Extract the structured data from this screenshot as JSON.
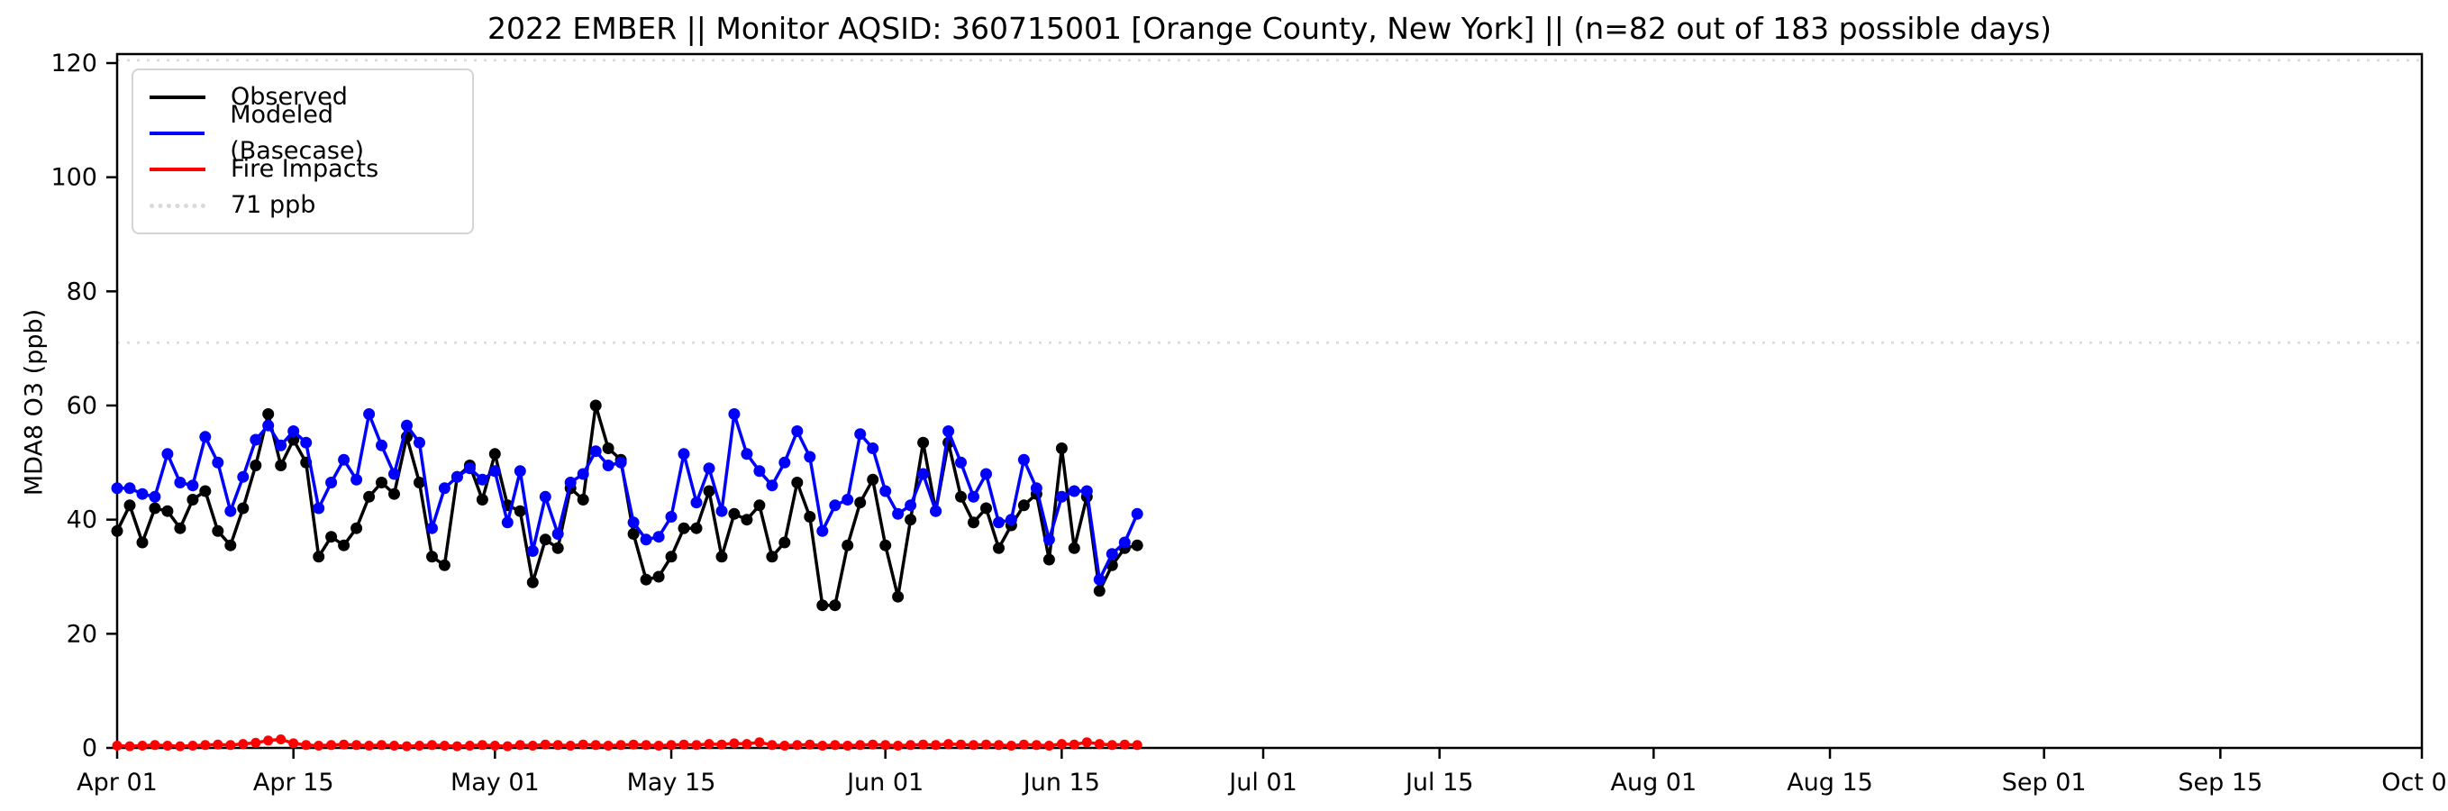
{
  "header": {
    "title": "2022 EMBER || Monitor AQSID: 360715001 [Orange County, New York] || (n=82 out of 183 possible days)"
  },
  "axes": {
    "y_label": "MDA8 O3 (ppb)",
    "y_ticks": [
      0,
      20,
      40,
      60,
      80,
      100,
      120
    ],
    "x_ticks": [
      {
        "label": "Apr 01",
        "day": 0
      },
      {
        "label": "Apr 15",
        "day": 14
      },
      {
        "label": "May 01",
        "day": 30
      },
      {
        "label": "May 15",
        "day": 44
      },
      {
        "label": "Jun 01",
        "day": 61
      },
      {
        "label": "Jun 15",
        "day": 75
      },
      {
        "label": "Jul 01",
        "day": 91
      },
      {
        "label": "Jul 15",
        "day": 105
      },
      {
        "label": "Aug 01",
        "day": 122
      },
      {
        "label": "Aug 15",
        "day": 136
      },
      {
        "label": "Sep 01",
        "day": 153
      },
      {
        "label": "Sep 15",
        "day": 167
      },
      {
        "label": "Oct 01",
        "day": 183
      }
    ],
    "x_total_days": 183
  },
  "legend": {
    "items": [
      {
        "label": "Observed",
        "color": "#000000",
        "style": "solid"
      },
      {
        "label": "Modeled (Basecase)",
        "color": "#0000ff",
        "style": "solid"
      },
      {
        "label": "Fire Impacts",
        "color": "#ff0000",
        "style": "solid"
      },
      {
        "label": "71 ppb",
        "color": "#d9d9d9",
        "style": "dotted"
      }
    ]
  },
  "chart_data": {
    "type": "line",
    "title": "2022 EMBER || Monitor AQSID: 360715001 [Orange County, New York] || (n=82 out of 183 possible days)",
    "xlabel": "",
    "ylabel": "MDA8 O3 (ppb)",
    "ylim": [
      0,
      120
    ],
    "x_axis_span": [
      "Apr 01",
      "Oct 01"
    ],
    "grid": false,
    "legend_position": "upper left",
    "x_dates": [
      "Apr 01",
      "Apr 02",
      "Apr 03",
      "Apr 04",
      "Apr 05",
      "Apr 06",
      "Apr 07",
      "Apr 08",
      "Apr 09",
      "Apr 10",
      "Apr 11",
      "Apr 12",
      "Apr 13",
      "Apr 14",
      "Apr 15",
      "Apr 16",
      "Apr 17",
      "Apr 18",
      "Apr 19",
      "Apr 20",
      "Apr 21",
      "Apr 22",
      "Apr 23",
      "Apr 24",
      "Apr 25",
      "Apr 26",
      "Apr 27",
      "Apr 28",
      "Apr 29",
      "Apr 30",
      "May 01",
      "May 02",
      "May 03",
      "May 04",
      "May 05",
      "May 06",
      "May 07",
      "May 08",
      "May 09",
      "May 10",
      "May 11",
      "May 12",
      "May 13",
      "May 14",
      "May 15",
      "May 16",
      "May 17",
      "May 18",
      "May 19",
      "May 20",
      "May 21",
      "May 22",
      "May 23",
      "May 24",
      "May 25",
      "May 26",
      "May 27",
      "May 28",
      "May 29",
      "May 30",
      "May 31",
      "Jun 01",
      "Jun 02",
      "Jun 03",
      "Jun 04",
      "Jun 05",
      "Jun 06",
      "Jun 07",
      "Jun 08",
      "Jun 09",
      "Jun 10",
      "Jun 11",
      "Jun 12",
      "Jun 13",
      "Jun 14",
      "Jun 15",
      "Jun 16",
      "Jun 17",
      "Jun 18",
      "Jun 19",
      "Jun 20",
      "Jun 21"
    ],
    "series": [
      {
        "name": "Observed",
        "color": "#000000",
        "values": [
          38,
          42.5,
          36,
          42,
          41.5,
          38.5,
          43.5,
          45,
          38,
          35.5,
          42,
          49.5,
          58.5,
          49.5,
          54,
          50,
          33.5,
          37,
          35.5,
          38.5,
          44,
          46.5,
          44.5,
          54.5,
          46.5,
          33.5,
          32,
          47.5,
          49.5,
          43.5,
          51.5,
          42.5,
          41.5,
          29,
          36.5,
          35,
          45.5,
          43.5,
          60,
          52.5,
          50.5,
          37.5,
          29.5,
          30,
          33.5,
          38.5,
          38.5,
          45,
          33.5,
          41,
          40,
          42.5,
          33.5,
          36,
          46.5,
          40.5,
          25,
          25,
          35.5,
          43,
          47,
          35.5,
          26.5,
          40,
          53.5,
          41.5,
          53.5,
          44,
          39.5,
          42,
          35,
          39,
          42.5,
          44.5,
          33,
          52.5,
          35,
          44,
          27.5,
          32,
          35,
          35.5
        ]
      },
      {
        "name": "Modeled (Basecase)",
        "color": "#0000ff",
        "values": [
          45.5,
          45.5,
          44.5,
          44,
          51.5,
          46.5,
          46,
          54.5,
          50,
          41.5,
          47.5,
          54,
          56.5,
          53,
          55.5,
          53.5,
          42,
          46.5,
          50.5,
          47,
          58.5,
          53,
          48,
          56.5,
          53.5,
          38.5,
          45.5,
          47.5,
          49,
          47,
          48.5,
          39.5,
          48.5,
          34.5,
          44,
          37.5,
          46.5,
          48,
          52,
          49.5,
          50,
          39.5,
          36.5,
          37,
          40.5,
          51.5,
          43,
          49,
          41.5,
          58.5,
          51.5,
          48.5,
          46,
          50,
          55.5,
          51,
          38,
          42.5,
          43.5,
          55,
          52.5,
          45,
          41,
          42.5,
          48,
          41.5,
          55.5,
          50,
          44,
          48,
          39.5,
          40,
          50.5,
          45.5,
          36.5,
          44,
          45,
          45,
          29.5,
          34,
          36,
          41
        ]
      },
      {
        "name": "Fire Impacts",
        "color": "#ff0000",
        "values": [
          0.4,
          0.3,
          0.4,
          0.5,
          0.4,
          0.3,
          0.4,
          0.5,
          0.6,
          0.5,
          0.7,
          0.9,
          1.3,
          1.5,
          0.8,
          0.5,
          0.4,
          0.5,
          0.6,
          0.5,
          0.4,
          0.5,
          0.4,
          0.3,
          0.4,
          0.5,
          0.4,
          0.3,
          0.4,
          0.5,
          0.4,
          0.3,
          0.5,
          0.4,
          0.6,
          0.5,
          0.4,
          0.6,
          0.5,
          0.4,
          0.5,
          0.6,
          0.5,
          0.4,
          0.5,
          0.6,
          0.5,
          0.7,
          0.6,
          0.8,
          0.7,
          1.0,
          0.5,
          0.4,
          0.5,
          0.6,
          0.4,
          0.5,
          0.4,
          0.5,
          0.6,
          0.5,
          0.4,
          0.5,
          0.6,
          0.5,
          0.7,
          0.6,
          0.5,
          0.6,
          0.5,
          0.4,
          0.6,
          0.5,
          0.4,
          0.7,
          0.6,
          1.0,
          0.7,
          0.5,
          0.6,
          0.5
        ]
      }
    ],
    "ref_lines": [
      {
        "value": 71,
        "label": "71 ppb",
        "color": "#d9d9d9",
        "style": "dotted"
      },
      {
        "value": 120.5,
        "label": "",
        "color": "#d9d9d9",
        "style": "dotted"
      }
    ]
  }
}
